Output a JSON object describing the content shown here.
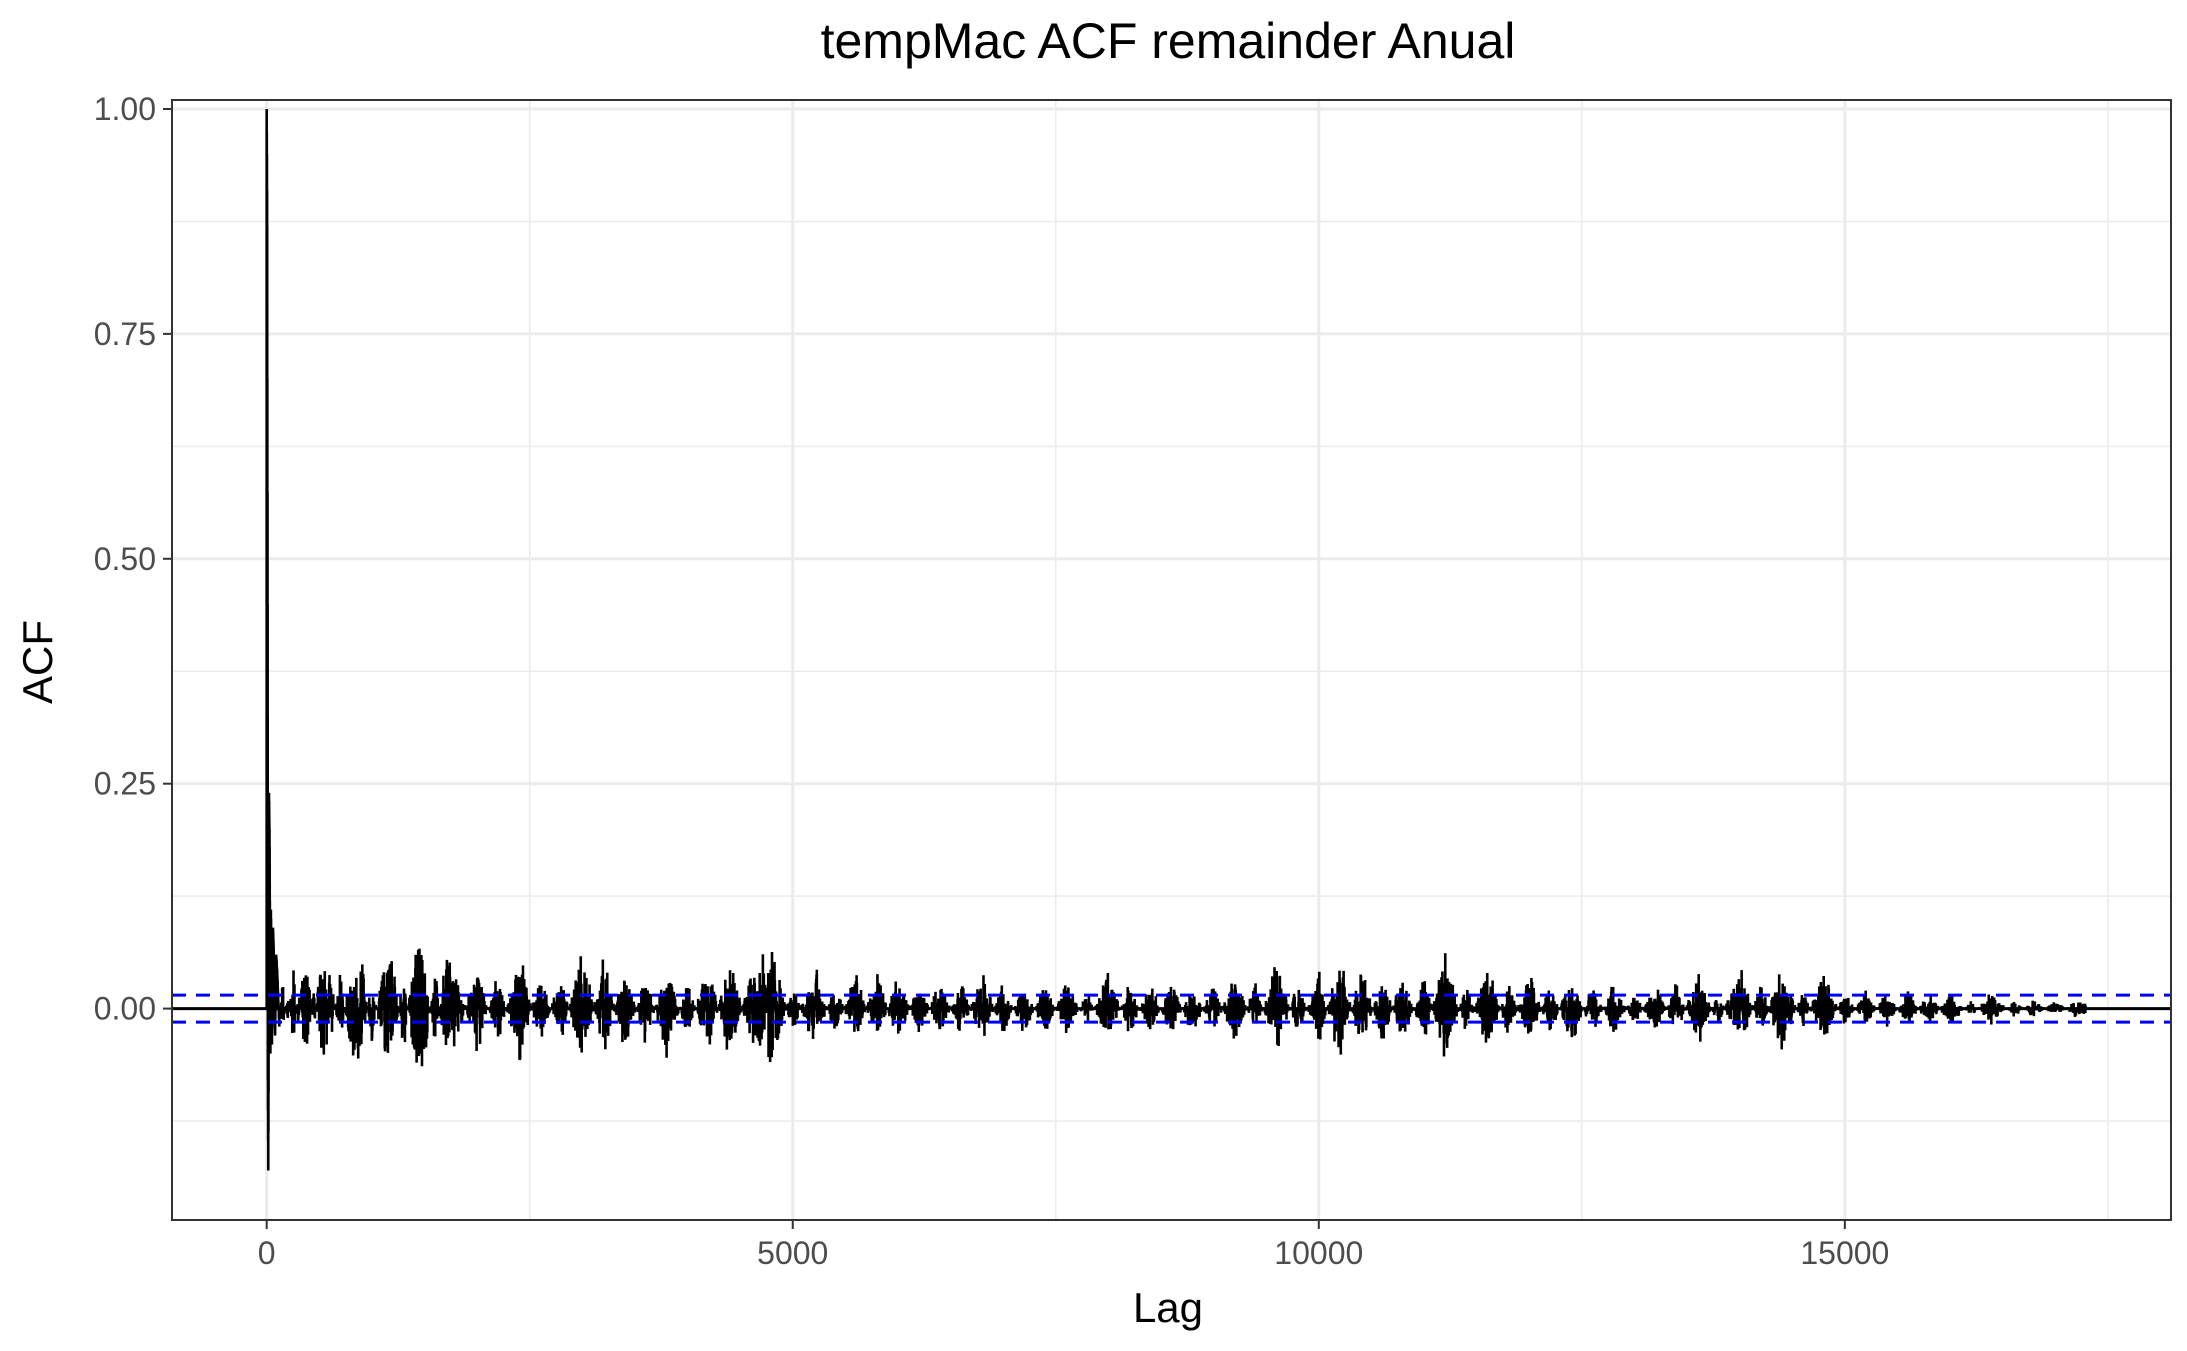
{
  "chart_data": {
    "type": "bar",
    "title": "tempMac ACF remainder Anual",
    "xlabel": "Lag",
    "ylabel": "ACF",
    "xlim": [
      -900,
      18100
    ],
    "ylim": [
      -0.235,
      1.01
    ],
    "x_ticks": [
      {
        "value": 0,
        "label": "0"
      },
      {
        "value": 5000,
        "label": "5000"
      },
      {
        "value": 10000,
        "label": "10000"
      },
      {
        "value": 15000,
        "label": "15000"
      }
    ],
    "y_ticks": [
      {
        "value": 0.0,
        "label": "0.00"
      },
      {
        "value": 0.25,
        "label": "0.25"
      },
      {
        "value": 0.5,
        "label": "0.50"
      },
      {
        "value": 0.75,
        "label": "0.75"
      },
      {
        "value": 1.0,
        "label": "1.00"
      }
    ],
    "x_minor_gridlines": [
      2500,
      7500,
      12500,
      17500
    ],
    "y_minor_gridlines": [
      -0.125,
      0.125,
      0.375,
      0.625,
      0.875
    ],
    "max_lag": 17300,
    "confidence_bound": 0.015,
    "series": [
      {
        "x": [
          0,
          2,
          4,
          6,
          8,
          10,
          12,
          15,
          18,
          22,
          26,
          30,
          35,
          40,
          45,
          50,
          60,
          70,
          80,
          90,
          100,
          120,
          150,
          200,
          250,
          300,
          350,
          400,
          450,
          500,
          600,
          700,
          800,
          900,
          1000,
          1100,
          1200,
          1300,
          1400,
          1500,
          1600,
          1700,
          1800,
          2000,
          2200,
          2400,
          2600,
          2800,
          3000,
          3200,
          3400,
          3600,
          3800,
          4000,
          4200,
          4400,
          4600,
          4800,
          5000,
          5200,
          5400,
          5600,
          5800,
          6000,
          6200,
          6400,
          6600,
          6800,
          7000,
          7200,
          7400,
          7600,
          7800,
          8000,
          8200,
          8400,
          8600,
          8800,
          9000,
          9200,
          9400,
          9600,
          9800,
          10000,
          10200,
          10400,
          10600,
          10800,
          11000,
          11200,
          11400,
          11600,
          11800,
          12000,
          12200,
          12400,
          12600,
          12800,
          13000,
          13200,
          13400,
          13600,
          13800,
          14000,
          14200,
          14400,
          14600,
          14800,
          15000,
          15200,
          15400,
          15600,
          15800,
          16000,
          16200,
          16400,
          16600,
          16800,
          17000,
          17200,
          17300
        ],
        "values": [
          1.0,
          0.95,
          0.87,
          0.7,
          0.45,
          0.2,
          -0.08,
          -0.18,
          -0.05,
          0.24,
          0.2,
          0.12,
          -0.05,
          0.11,
          0.06,
          -0.04,
          0.09,
          0.05,
          -0.03,
          0.06,
          0.04,
          -0.02,
          0.03,
          -0.02,
          0.05,
          -0.03,
          0.06,
          0.04,
          -0.03,
          0.05,
          0.04,
          -0.04,
          0.05,
          0.06,
          -0.04,
          0.05,
          0.06,
          -0.05,
          0.07,
          0.06,
          -0.05,
          0.06,
          0.04,
          -0.05,
          0.04,
          -0.06,
          0.04,
          -0.04,
          0.07,
          -0.06,
          0.05,
          -0.04,
          0.05,
          -0.03,
          0.05,
          -0.06,
          0.04,
          0.07,
          -0.03,
          0.05,
          -0.03,
          0.04,
          -0.04,
          0.04,
          -0.03,
          0.03,
          -0.03,
          0.04,
          -0.03,
          0.03,
          -0.03,
          0.03,
          -0.02,
          0.04,
          -0.03,
          0.03,
          -0.03,
          0.03,
          -0.03,
          0.04,
          -0.03,
          0.05,
          -0.03,
          0.04,
          -0.06,
          0.05,
          -0.04,
          0.04,
          -0.04,
          0.06,
          -0.03,
          0.05,
          -0.03,
          0.04,
          -0.03,
          0.04,
          -0.03,
          0.03,
          -0.02,
          0.03,
          -0.03,
          0.04,
          -0.02,
          0.05,
          -0.03,
          0.05,
          -0.02,
          0.04,
          -0.02,
          0.02,
          -0.02,
          0.02,
          -0.02,
          0.02,
          -0.01,
          0.02,
          -0.01,
          0.01,
          -0.01,
          0.01,
          0.005
        ]
      }
    ],
    "colors": {
      "bars": "#000000",
      "confidence_lines": "#0000ff",
      "gridlines": "#ebebeb",
      "panel_border": "#333333",
      "zero_line": "#000000"
    }
  }
}
